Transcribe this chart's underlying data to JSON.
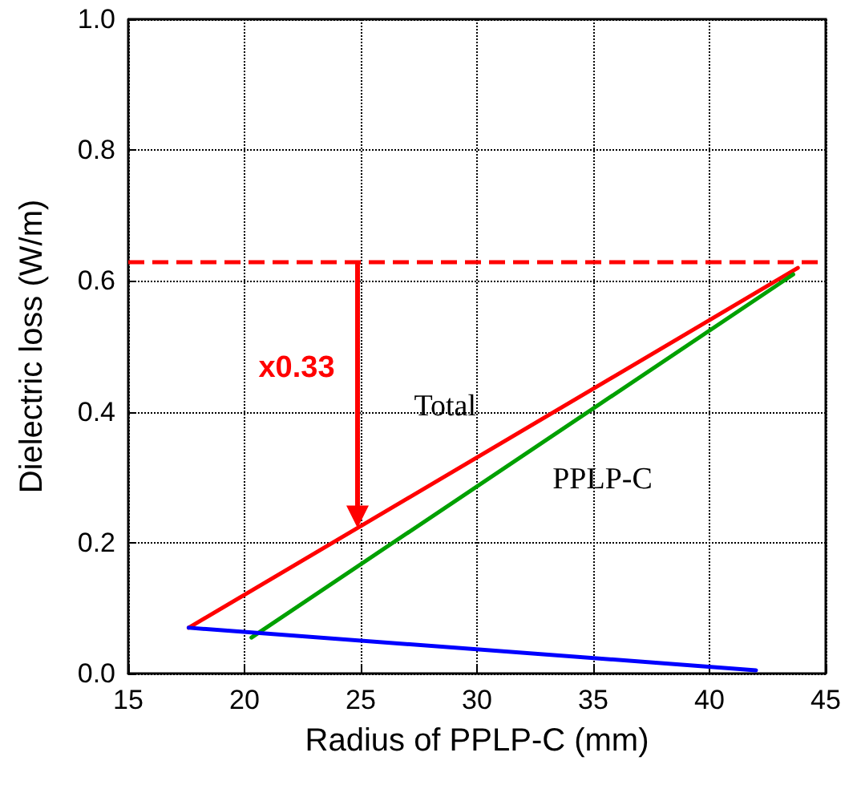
{
  "chart_data": {
    "type": "line",
    "xlabel": "Radius of PPLP-C (mm)",
    "ylabel": "Dielectric loss (W/m)",
    "xlim": [
      15,
      45
    ],
    "xticks": [
      15,
      20,
      25,
      30,
      35,
      40,
      45
    ],
    "ylim": [
      0,
      1
    ],
    "yticks": [
      {
        "value": 0,
        "label": "0.0"
      },
      {
        "value": 0.2,
        "label": "0.2"
      },
      {
        "value": 0.4,
        "label": "0.4"
      },
      {
        "value": 0.6,
        "label": "0.6"
      },
      {
        "value": 0.8,
        "label": "0.8"
      },
      {
        "value": 1,
        "label": "1.0"
      }
    ],
    "grid": true,
    "legend": false,
    "marker": "none",
    "line_style": "solid",
    "series": [
      {
        "name": "Total",
        "color": "#ff0000",
        "x": [
          17.6,
          43.8
        ],
        "values": [
          0.07,
          0.62
        ]
      },
      {
        "name": "PPLP-C",
        "color": "#00a000",
        "x": [
          20.3,
          43.6
        ],
        "values": [
          0.055,
          0.61
        ]
      },
      {
        "color": "#0000ff",
        "x": [
          17.6,
          42
        ],
        "values": [
          0.07,
          0.005
        ]
      }
    ],
    "ref_lines": [
      {
        "axis": "y",
        "value": 0.63,
        "color": "#ff0000",
        "line_style": "dashed"
      }
    ],
    "annotations": [
      "x0.33"
    ]
  }
}
